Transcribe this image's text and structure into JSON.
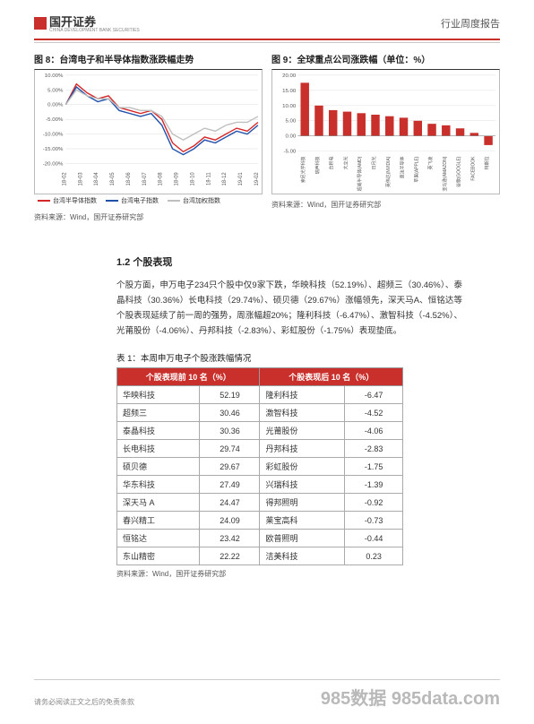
{
  "header": {
    "logo_text": "国开证券",
    "logo_sub": "CHINA DEVELOPMENT BANK SECURITIES",
    "doc_type": "行业周度报告"
  },
  "chart8": {
    "title": "图 8：台湾电子和半导体指数涨跌幅走势",
    "type": "line",
    "ylim": [
      -20,
      10
    ],
    "ytick_step": 5,
    "y_ticks": [
      "10.00%",
      "5.00%",
      "0.00%",
      "-5.00%",
      "-10.00%",
      "-15.00%",
      "-20.00%"
    ],
    "x_labels": [
      "18-02",
      "18-03",
      "18-04",
      "18-05",
      "18-06",
      "18-07",
      "18-08",
      "18-09",
      "18-10",
      "18-11",
      "18-12",
      "19-01",
      "19-02"
    ],
    "series": [
      {
        "name": "台湾半导体指数",
        "color": "#d62728",
        "values": [
          0,
          7,
          4,
          2,
          3,
          -1,
          -2,
          -3,
          -2,
          -5,
          -13,
          -16,
          -14,
          -11,
          -12,
          -10,
          -8,
          -9,
          -6
        ]
      },
      {
        "name": "台湾电子指数",
        "color": "#1f4fa8",
        "values": [
          0,
          6,
          3,
          1,
          2,
          -2,
          -3,
          -4,
          -3,
          -7,
          -15,
          -17,
          -15,
          -12,
          -13,
          -11,
          -9,
          -10,
          -7
        ]
      },
      {
        "name": "台湾加权指数",
        "color": "#bfbfbf",
        "values": [
          0,
          5,
          3,
          2,
          2,
          -1,
          -1,
          -2,
          -2,
          -4,
          -10,
          -12,
          -10,
          -8,
          -9,
          -7,
          -6,
          -6,
          -4
        ]
      }
    ],
    "legend_pos": "bottom",
    "background_color": "#ffffff",
    "grid_color": "#e0e0e0",
    "source": "资料来源：Wind，国开证券研究部"
  },
  "chart9": {
    "title": "图 9：全球重点公司涨跌幅（单位：%）",
    "type": "bar",
    "ylim": [
      -5,
      20
    ],
    "ytick_step": 5,
    "y_ticks": [
      "20.00",
      "15.00",
      "10.00",
      "5.00",
      "0.00",
      "-5.00"
    ],
    "categories": [
      "索尼光学科技",
      "瑞声科技",
      "台积电",
      "大立光",
      "超威半导体(AMD)",
      "日月光",
      "英伟达(NVIDIA)",
      "意法半导体",
      "苹果(APPLE)",
      "英飞凌",
      "亚马逊(AMAZON)",
      "谷歌(GOOGLE)",
      "FACEBOOK",
      "特斯拉"
    ],
    "values": [
      17.5,
      10.0,
      8.5,
      8.0,
      7.5,
      7.0,
      6.5,
      6.0,
      5.0,
      4.0,
      3.5,
      2.5,
      1.0,
      -3.0
    ],
    "bar_color": "#c9302c",
    "background_color": "#ffffff",
    "grid_color": "#e0e0e0",
    "source": "资料来源：Wind，国开证券研究部"
  },
  "section12": {
    "heading": "1.2 个股表现",
    "para": "个股方面，申万电子234只个股中仅9家下跌，华映科技（52.19%）、超频三（30.46%）、泰晶科技（30.36%）长电科技（29.74%）、硕贝德（29.67%）涨幅领先，深天马A、恒铭达等个股表现延续了前一周的强势，周涨幅超20%；隆利科技（-6.47%）、激智科技（-4.52%）、光莆股份（-4.06%）、丹邦科技（-2.83%）、彩虹股份（-1.75%）表现垫底。"
  },
  "table1": {
    "title": "表 1：本周申万电子个股涨跌幅情况",
    "header_left": "个股表现前 10 名（%）",
    "header_right": "个股表现后 10 名（%）",
    "rows": [
      {
        "l_name": "华映科技",
        "l_val": "52.19",
        "r_name": "隆利科技",
        "r_val": "-6.47"
      },
      {
        "l_name": "超频三",
        "l_val": "30.46",
        "r_name": "激智科技",
        "r_val": "-4.52"
      },
      {
        "l_name": "泰晶科技",
        "l_val": "30.36",
        "r_name": "光莆股份",
        "r_val": "-4.06"
      },
      {
        "l_name": "长电科技",
        "l_val": "29.74",
        "r_name": "丹邦科技",
        "r_val": "-2.83"
      },
      {
        "l_name": "硕贝德",
        "l_val": "29.67",
        "r_name": "彩虹股份",
        "r_val": "-1.75"
      },
      {
        "l_name": "华东科技",
        "l_val": "27.49",
        "r_name": "兴瑞科技",
        "r_val": "-1.39"
      },
      {
        "l_name": "深天马 A",
        "l_val": "24.47",
        "r_name": "得邦照明",
        "r_val": "-0.92"
      },
      {
        "l_name": "春兴精工",
        "l_val": "24.09",
        "r_name": "莱宝高科",
        "r_val": "-0.73"
      },
      {
        "l_name": "恒铭达",
        "l_val": "23.42",
        "r_name": "欧普照明",
        "r_val": "-0.44"
      },
      {
        "l_name": "东山精密",
        "l_val": "22.22",
        "r_name": "洁美科技",
        "r_val": "0.23"
      }
    ],
    "source": "资料来源：Wind，国开证券研究部",
    "header_bg": "#c9302c",
    "header_fg": "#ffffff",
    "border_color": "#aaaaaa"
  },
  "footer": {
    "disclaimer": "请务必阅读正文之后的免责条款",
    "watermark": "985数据 985data.com"
  }
}
